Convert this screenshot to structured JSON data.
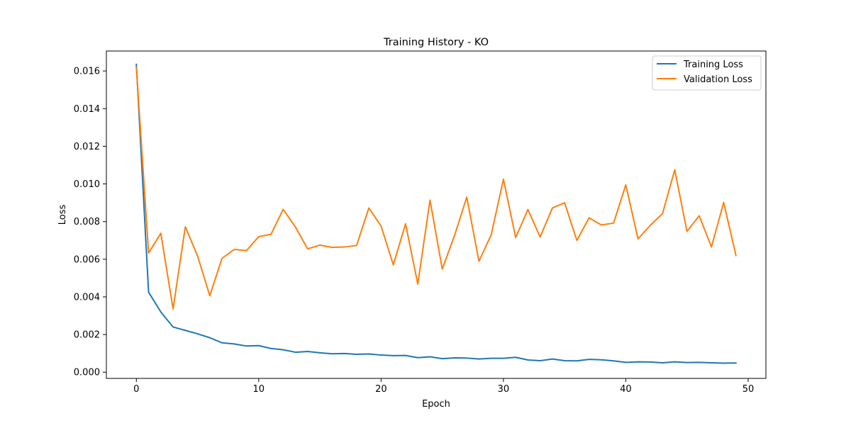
{
  "chart_data": {
    "type": "line",
    "title": "Training History - KO",
    "xlabel": "Epoch",
    "ylabel": "Loss",
    "xlim": [
      -2.45,
      51.45
    ],
    "ylim": [
      -0.00033,
      0.01706
    ],
    "xticks": [
      0,
      10,
      20,
      30,
      40,
      50
    ],
    "xtick_labels": [
      "0",
      "10",
      "20",
      "30",
      "40",
      "50"
    ],
    "yticks": [
      0.0,
      0.002,
      0.004,
      0.006,
      0.008,
      0.01,
      0.012,
      0.014,
      0.016
    ],
    "ytick_labels": [
      "0.000",
      "0.002",
      "0.004",
      "0.006",
      "0.008",
      "0.010",
      "0.012",
      "0.014",
      "0.016"
    ],
    "grid": false,
    "legend": "top-right",
    "x": [
      0,
      1,
      2,
      3,
      4,
      5,
      6,
      7,
      8,
      9,
      10,
      11,
      12,
      13,
      14,
      15,
      16,
      17,
      18,
      19,
      20,
      21,
      22,
      23,
      24,
      25,
      26,
      27,
      28,
      29,
      30,
      31,
      32,
      33,
      34,
      35,
      36,
      37,
      38,
      39,
      40,
      41,
      42,
      43,
      44,
      45,
      46,
      47,
      48,
      49
    ],
    "series": [
      {
        "name": "Training Loss",
        "color": "#1f77b4",
        "values": [
          0.01635,
          0.00425,
          0.0032,
          0.0024,
          0.00222,
          0.00204,
          0.00183,
          0.00156,
          0.0015,
          0.00139,
          0.00141,
          0.00126,
          0.00119,
          0.00106,
          0.0011,
          0.00103,
          0.00098,
          0.00099,
          0.00095,
          0.00097,
          0.00091,
          0.00088,
          0.00089,
          0.00077,
          0.00082,
          0.00072,
          0.00076,
          0.00075,
          0.0007,
          0.00074,
          0.00074,
          0.00079,
          0.00065,
          0.00061,
          0.0007,
          0.00061,
          0.0006,
          0.00068,
          0.00066,
          0.0006,
          0.00052,
          0.00055,
          0.00054,
          0.0005,
          0.00055,
          0.00051,
          0.00052,
          0.0005,
          0.00048,
          0.00049
        ]
      },
      {
        "name": "Validation Loss",
        "color": "#ff7f0e",
        "values": [
          0.0162,
          0.00633,
          0.00738,
          0.00336,
          0.00772,
          0.00618,
          0.00406,
          0.00605,
          0.00652,
          0.00646,
          0.0072,
          0.00732,
          0.00865,
          0.00771,
          0.00655,
          0.00675,
          0.00663,
          0.00665,
          0.00673,
          0.00872,
          0.00776,
          0.0057,
          0.00788,
          0.00468,
          0.00914,
          0.00548,
          0.00725,
          0.0093,
          0.00589,
          0.0073,
          0.01025,
          0.00715,
          0.00864,
          0.00718,
          0.00872,
          0.009,
          0.007,
          0.0082,
          0.00782,
          0.00792,
          0.00995,
          0.00708,
          0.0078,
          0.00842,
          0.01075,
          0.00748,
          0.00831,
          0.00665,
          0.00902,
          0.0062
        ]
      }
    ]
  }
}
